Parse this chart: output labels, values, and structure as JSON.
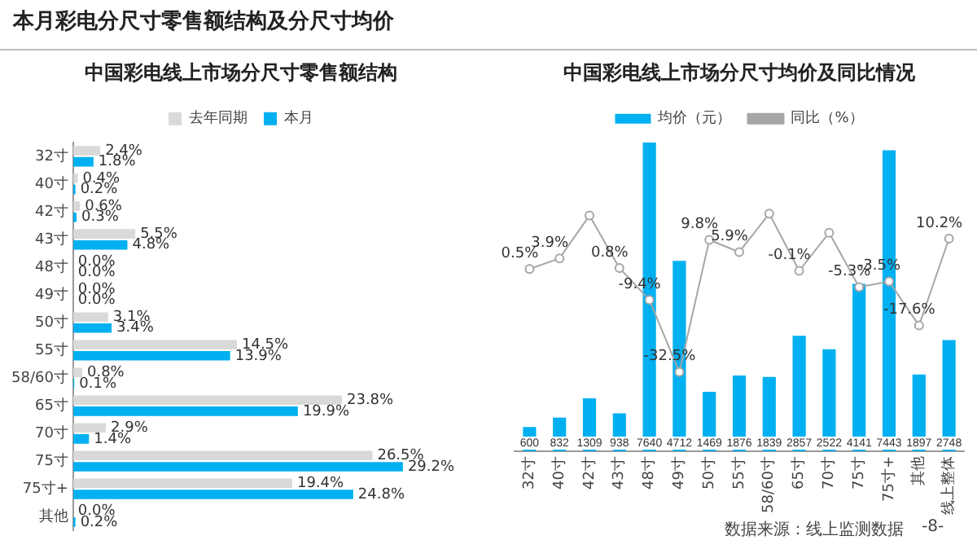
{
  "chart_data": [
    {
      "type": "bar",
      "orientation": "horizontal",
      "title": "中国彩电线上市场分尺寸零售额结构",
      "annotations": [
        "本月彩电分尺寸零售额结构及分尺寸均价"
      ],
      "legend": "top",
      "grid": false,
      "tick_labels": "y",
      "categories": [
        "32寸",
        "40寸",
        "42寸",
        "43寸",
        "48寸",
        "49寸",
        "50寸",
        "55寸",
        "58/60寸",
        "65寸",
        "70寸",
        "75寸",
        "75寸+",
        "其他"
      ],
      "series": [
        {
          "name": "去年同期",
          "color": "#d9d9d9",
          "values": [
            2.4,
            0.4,
            0.6,
            5.5,
            0.0,
            0.0,
            3.1,
            14.5,
            0.8,
            23.8,
            2.9,
            26.5,
            19.4,
            0.0
          ],
          "value_labels": [
            "2.4%",
            "0.4%",
            "0.6%",
            "5.5%",
            "0.0%",
            "0.0%",
            "3.1%",
            "14.5%",
            "0.8%",
            "23.8%",
            "2.9%",
            "26.5%",
            "19.4%",
            "0.0%"
          ]
        },
        {
          "name": "本月",
          "color": "#00b0f0",
          "values": [
            1.8,
            0.2,
            0.3,
            4.8,
            0.0,
            0.0,
            3.4,
            13.9,
            0.1,
            19.9,
            1.4,
            29.2,
            24.8,
            0.2
          ],
          "value_labels": [
            "1.8%",
            "0.2%",
            "0.3%",
            "4.8%",
            "0.0%",
            "0.0%",
            "3.4%",
            "13.9%",
            "0.1%",
            "19.9%",
            "1.4%",
            "29.2%",
            "24.8%",
            "0.2%"
          ]
        }
      ]
    },
    {
      "type": "bar",
      "title": "中国彩电线上市场分尺寸均价及同比情况",
      "annotations": [
        "数据来源：线上监测数据",
        "-8-"
      ],
      "legend": "top",
      "grid": false,
      "tick_labels": "x",
      "marker": "circle",
      "categories": [
        "32寸",
        "40寸",
        "42寸",
        "43寸",
        "48寸",
        "49寸",
        "50寸",
        "55寸",
        "58/60寸",
        "65寸",
        "70寸",
        "75寸",
        "75寸+",
        "其他",
        "线上整体"
      ],
      "series": [
        {
          "name": "均价（元）",
          "type": "bar",
          "color": "#00b0f0",
          "values": [
            600,
            832,
            1309,
            938,
            7640,
            4712,
            1469,
            1876,
            1839,
            2857,
            2522,
            4141,
            7443,
            1897,
            2748
          ],
          "value_labels": [
            "600",
            "832",
            "1309",
            "938",
            "7640",
            "4712",
            "1469",
            "1876",
            "1839",
            "2857",
            "2522",
            "4141",
            "7443",
            "1897",
            "2748"
          ]
        },
        {
          "name": "同比（%）",
          "type": "line",
          "axis": "y2",
          "color": "#a6a6a6",
          "values": [
            0.5,
            3.9,
            17.6,
            0.8,
            -9.4,
            -32.5,
            9.8,
            5.9,
            18.2,
            -0.1,
            12.1,
            -5.3,
            -3.5,
            -17.6,
            10.2
          ],
          "value_labels": [
            "0.5%",
            "3.9%",
            null,
            "0.8%",
            "-9.4%",
            "-32.5%",
            "9.8%",
            "5.9%",
            null,
            "-0.1%",
            null,
            "-5.3%",
            "-3.5%",
            "-17.6%",
            "10.2%"
          ]
        }
      ]
    }
  ]
}
